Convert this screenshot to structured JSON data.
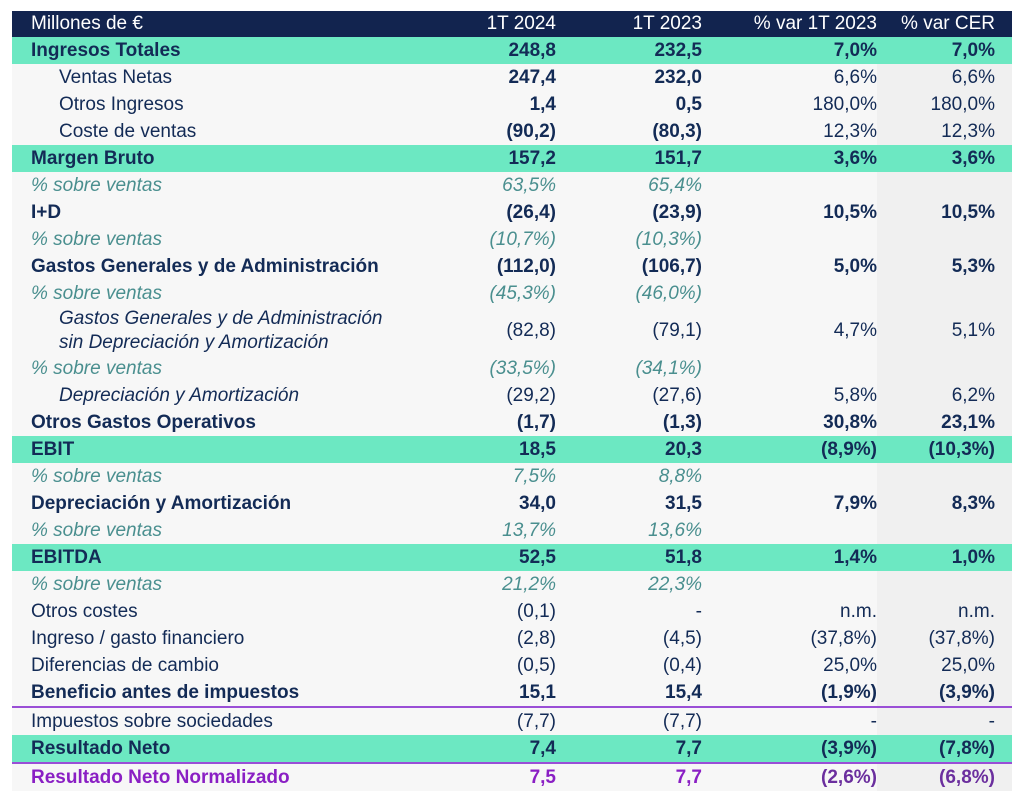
{
  "table": {
    "header": {
      "label": "Millones de €",
      "col1": "1T 2024",
      "col2": "1T 2023",
      "col3": "% var 1T 2023",
      "col4": "% var CER"
    },
    "rows": [
      {
        "label": "Ingresos Totales",
        "v1": "248,8",
        "v2": "232,5",
        "v3": "7,0%",
        "v4": "7,0%"
      },
      {
        "label": "Ventas Netas",
        "v1": "247,4",
        "v2": "232,0",
        "v3": "6,6%",
        "v4": "6,6%"
      },
      {
        "label": "Otros Ingresos",
        "v1": "1,4",
        "v2": "0,5",
        "v3": "180,0%",
        "v4": "180,0%"
      },
      {
        "label": "Coste de ventas",
        "v1": "(90,2)",
        "v2": "(80,3)",
        "v3": "12,3%",
        "v4": "12,3%"
      },
      {
        "label": "Margen Bruto",
        "v1": "157,2",
        "v2": "151,7",
        "v3": "3,6%",
        "v4": "3,6%"
      },
      {
        "label": "% sobre ventas",
        "v1": "63,5%",
        "v2": "65,4%",
        "v3": "",
        "v4": ""
      },
      {
        "label": "I+D",
        "v1": "(26,4)",
        "v2": "(23,9)",
        "v3": "10,5%",
        "v4": "10,5%"
      },
      {
        "label": "% sobre ventas",
        "v1": "(10,7%)",
        "v2": "(10,3%)",
        "v3": "",
        "v4": ""
      },
      {
        "label": "Gastos Generales y de Administración",
        "v1": "(112,0)",
        "v2": "(106,7)",
        "v3": "5,0%",
        "v4": "5,3%"
      },
      {
        "label": "% sobre ventas",
        "v1": "(45,3%)",
        "v2": "(46,0%)",
        "v3": "",
        "v4": ""
      },
      {
        "label_line1": "Gastos Generales y de Administración",
        "label_line2": "sin Depreciación y Amortización",
        "v1": "(82,8)",
        "v2": "(79,1)",
        "v3": "4,7%",
        "v4": "5,1%"
      },
      {
        "label": "% sobre ventas",
        "v1": "(33,5%)",
        "v2": "(34,1%)",
        "v3": "",
        "v4": ""
      },
      {
        "label": "Depreciación y Amortización",
        "v1": "(29,2)",
        "v2": "(27,6)",
        "v3": "5,8%",
        "v4": "6,2%"
      },
      {
        "label": "Otros Gastos Operativos",
        "v1": "(1,7)",
        "v2": "(1,3)",
        "v3": "30,8%",
        "v4": "23,1%"
      },
      {
        "label": "EBIT",
        "v1": "18,5",
        "v2": "20,3",
        "v3": "(8,9%)",
        "v4": "(10,3%)"
      },
      {
        "label": "% sobre ventas",
        "v1": "7,5%",
        "v2": "8,8%",
        "v3": "",
        "v4": ""
      },
      {
        "label": "Depreciación y Amortización",
        "v1": "34,0",
        "v2": "31,5",
        "v3": "7,9%",
        "v4": "8,3%"
      },
      {
        "label": "% sobre ventas",
        "v1": "13,7%",
        "v2": "13,6%",
        "v3": "",
        "v4": ""
      },
      {
        "label": "EBITDA",
        "v1": "52,5",
        "v2": "51,8",
        "v3": "1,4%",
        "v4": "1,0%"
      },
      {
        "label": "% sobre ventas",
        "v1": "21,2%",
        "v2": "22,3%",
        "v3": "",
        "v4": ""
      },
      {
        "label": "Otros costes",
        "v1": "(0,1)",
        "v2": "-",
        "v3": "n.m.",
        "v4": "n.m."
      },
      {
        "label": "Ingreso / gasto financiero",
        "v1": "(2,8)",
        "v2": "(4,5)",
        "v3": "(37,8%)",
        "v4": "(37,8%)"
      },
      {
        "label": "Diferencias de cambio",
        "v1": "(0,5)",
        "v2": "(0,4)",
        "v3": "25,0%",
        "v4": "25,0%"
      },
      {
        "label": "Beneficio antes de impuestos",
        "v1": "15,1",
        "v2": "15,4",
        "v3": "(1,9%)",
        "v4": "(3,9%)"
      },
      {
        "label": "Impuestos sobre sociedades",
        "v1": "(7,7)",
        "v2": "(7,7)",
        "v3": "-",
        "v4": "-"
      },
      {
        "label": "Resultado Neto",
        "v1": "7,4",
        "v2": "7,7",
        "v3": "(3,9%)",
        "v4": "(7,8%)"
      },
      {
        "label": "Resultado Neto Normalizado",
        "v1": "7,5",
        "v2": "7,7",
        "v3": "(2,6%)",
        "v4": "(6,8%)"
      }
    ]
  },
  "colors": {
    "header_bg": "#12244f",
    "highlight_bg": "#6ce8c2",
    "text": "#132b56",
    "pct_text": "#4a8f8f",
    "purple": "#8a1fc4"
  }
}
